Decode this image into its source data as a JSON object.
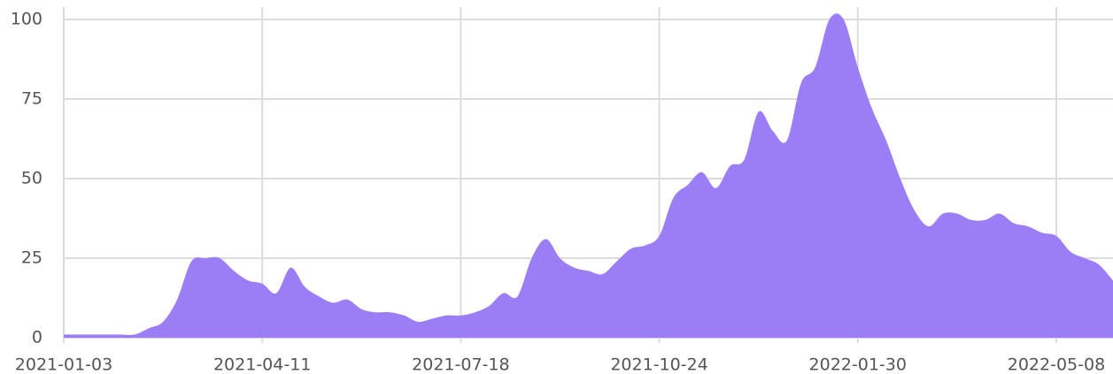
{
  "chart_data": {
    "type": "area",
    "x": [
      "2021-01-03",
      "2021-01-10",
      "2021-01-17",
      "2021-01-24",
      "2021-01-31",
      "2021-02-07",
      "2021-02-14",
      "2021-02-21",
      "2021-02-28",
      "2021-03-07",
      "2021-03-14",
      "2021-03-21",
      "2021-03-28",
      "2021-04-04",
      "2021-04-11",
      "2021-04-18",
      "2021-04-25",
      "2021-05-02",
      "2021-05-09",
      "2021-05-16",
      "2021-05-23",
      "2021-05-30",
      "2021-06-06",
      "2021-06-13",
      "2021-06-20",
      "2021-06-27",
      "2021-07-04",
      "2021-07-11",
      "2021-07-18",
      "2021-07-25",
      "2021-08-01",
      "2021-08-08",
      "2021-08-15",
      "2021-08-22",
      "2021-08-29",
      "2021-09-05",
      "2021-09-12",
      "2021-09-19",
      "2021-09-26",
      "2021-10-03",
      "2021-10-10",
      "2021-10-17",
      "2021-10-24",
      "2021-10-31",
      "2021-11-07",
      "2021-11-14",
      "2021-11-21",
      "2021-11-28",
      "2021-12-05",
      "2021-12-12",
      "2021-12-19",
      "2021-12-26",
      "2022-01-02",
      "2022-01-09",
      "2022-01-16",
      "2022-01-23",
      "2022-01-30",
      "2022-02-06",
      "2022-02-13",
      "2022-02-20",
      "2022-02-27",
      "2022-03-06",
      "2022-03-13",
      "2022-03-20",
      "2022-03-27",
      "2022-04-03",
      "2022-04-10",
      "2022-04-17",
      "2022-04-24",
      "2022-05-01",
      "2022-05-08",
      "2022-05-15",
      "2022-05-22",
      "2022-05-29",
      "2022-06-05"
    ],
    "values": [
      1,
      1,
      1,
      1,
      1,
      1,
      3,
      5,
      12,
      24,
      25,
      25,
      21,
      18,
      17,
      14,
      22,
      16,
      13,
      11,
      12,
      9,
      8,
      8,
      7,
      5,
      6,
      7,
      7,
      8,
      10,
      14,
      13,
      25,
      31,
      25,
      22,
      21,
      20,
      24,
      28,
      29,
      32,
      44,
      48,
      52,
      47,
      54,
      56,
      71,
      65,
      62,
      80,
      85,
      100,
      100,
      85,
      72,
      62,
      50,
      40,
      35,
      39,
      39,
      37,
      37,
      39,
      36,
      35,
      33,
      32,
      27,
      25,
      23,
      18
    ],
    "color": "#9b7ef5",
    "xlim": [
      "2021-01-03",
      "2022-06-05"
    ],
    "xticks": [
      "2021-01-03",
      "2021-04-11",
      "2021-07-18",
      "2021-10-24",
      "2022-01-30",
      "2022-05-08"
    ],
    "ylim": [
      0,
      100
    ],
    "yticks": [
      0,
      25,
      50,
      75,
      100
    ],
    "grid": true
  }
}
